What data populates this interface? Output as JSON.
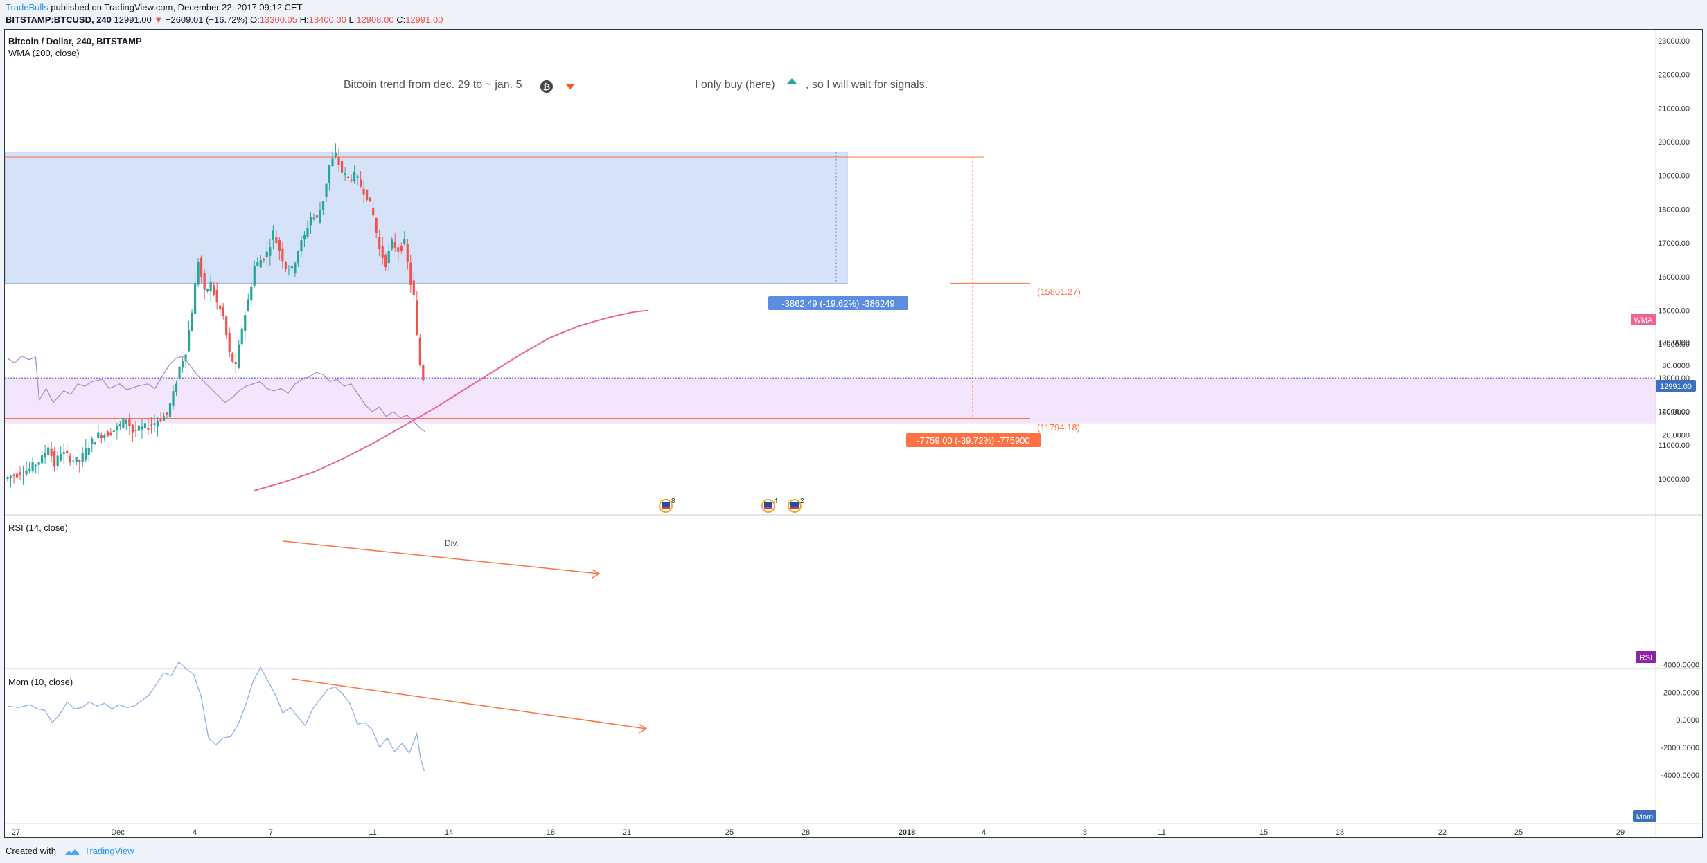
{
  "header": {
    "author": "TradeBulls",
    "published_text": "published on TradingView.com, December 22, 2017 09:12 CET",
    "symbol": "BITSTAMP:BTCUSD, 240",
    "last": "12991.00",
    "change": "−2609.01 (−16.72%)",
    "o_label": "O:",
    "o_value": "13300.05",
    "h_label": "H:",
    "h_value": "13400.00",
    "l_label": "L:",
    "l_value": "12908.00",
    "c_label": "C:",
    "c_value": "12991.00"
  },
  "legend": {
    "title": "Bitcoin / Dollar, 240, BITSTAMP",
    "wma": "WMA (200, close)",
    "rsi": "RSI (14, close)",
    "mom": "Mom (10, close)"
  },
  "annotations": {
    "trend_text": "Bitcoin trend from dec. 29 to ~ jan. 5",
    "buy_text_1": "I only buy (here)",
    "buy_text_2": ", so I will wait for signals.",
    "div_text": "Div.",
    "range_label_1": "-3862.49 (-19.62%) -386249",
    "range_label_2": "-7759.00 (-39.72%) -775900",
    "level_1": "(15801.27)",
    "level_2": "(11794.18)",
    "event_count_1": "8",
    "event_count_2": "4",
    "event_count_3": "2"
  },
  "badges": {
    "wma": "WMA",
    "price": "12991.00",
    "rsi": "RSI",
    "mom": "Mom"
  },
  "colors": {
    "up": "#26a69a",
    "down": "#ef5350",
    "wma": "#f06292",
    "rsi": "#b388d0",
    "mom": "#8fb0e6",
    "zone": "#c5d5f5",
    "rsi_band": "#f3e5fc",
    "drawing": "#ff7043",
    "price_line": "#3d6fc1"
  },
  "footer": {
    "created_with": "Created with",
    "brand": "TradingView"
  },
  "chart_data": {
    "type": "candlestick",
    "title": "Bitcoin / Dollar, 240, BITSTAMP",
    "timeframe": "240",
    "price_axis": {
      "ticks": [
        "23000.00",
        "22000.00",
        "21000.00",
        "20000.00",
        "19000.00",
        "18000.00",
        "17000.00",
        "16000.00",
        "15000.00",
        "14000.00",
        "13000.00",
        "12000.00",
        "11000.00",
        "10000.00"
      ],
      "range": [
        9500,
        23500
      ]
    },
    "rsi_axis": {
      "ticks": [
        "100.0000",
        "80.0000",
        "60.0000",
        "40.0000",
        "20.0000"
      ],
      "range": [
        20,
        100
      ],
      "band": [
        30,
        70
      ]
    },
    "mom_axis": {
      "ticks": [
        "4000.0000",
        "2000.0000",
        "0.0000",
        "-2000.0000",
        "-4000.0000"
      ],
      "range": [
        -4000,
        4000
      ]
    },
    "x_ticks": [
      "27",
      "Dec",
      "4",
      "7",
      "11",
      "14",
      "18",
      "21",
      "25",
      "28",
      "2018",
      "4",
      "8",
      "11",
      "15",
      "18",
      "22",
      "25",
      "29"
    ],
    "key_levels": {
      "zone_top": 19700,
      "zone_bottom": 15801.27,
      "level_1": 15801.27,
      "level_2": 11794.18,
      "last": 12991
    },
    "price_points": [
      [
        0,
        10000
      ],
      [
        4,
        10150
      ],
      [
        8,
        10300
      ],
      [
        12,
        10600
      ],
      [
        14,
        11000
      ],
      [
        16,
        10400
      ],
      [
        18,
        10800
      ],
      [
        21,
        10600
      ],
      [
        24,
        10500
      ],
      [
        27,
        11000
      ],
      [
        30,
        11300
      ],
      [
        33,
        11350
      ],
      [
        36,
        11500
      ],
      [
        39,
        11800
      ],
      [
        41,
        11400
      ],
      [
        44,
        11500
      ],
      [
        47,
        11600
      ],
      [
        50,
        11800
      ],
      [
        52,
        11900
      ],
      [
        54,
        12500
      ],
      [
        56,
        13300
      ],
      [
        58,
        13800
      ],
      [
        60,
        15000
      ],
      [
        62,
        16500
      ],
      [
        64,
        15500
      ],
      [
        66,
        15800
      ],
      [
        68,
        15200
      ],
      [
        70,
        14800
      ],
      [
        72,
        13700
      ],
      [
        74,
        13300
      ],
      [
        76,
        14500
      ],
      [
        78,
        15300
      ],
      [
        80,
        16300
      ],
      [
        82,
        16500
      ],
      [
        84,
        16700
      ],
      [
        86,
        17300
      ],
      [
        88,
        16800
      ],
      [
        90,
        16300
      ],
      [
        92,
        16200
      ],
      [
        94,
        16800
      ],
      [
        96,
        17200
      ],
      [
        98,
        17800
      ],
      [
        100,
        17700
      ],
      [
        102,
        18300
      ],
      [
        104,
        19300
      ],
      [
        106,
        19600
      ],
      [
        108,
        19100
      ],
      [
        110,
        18900
      ],
      [
        112,
        19000
      ],
      [
        114,
        18700
      ],
      [
        116,
        18400
      ],
      [
        118,
        17800
      ],
      [
        120,
        16800
      ],
      [
        122,
        16400
      ],
      [
        124,
        17000
      ],
      [
        126,
        16800
      ],
      [
        128,
        17000
      ],
      [
        130,
        15800
      ],
      [
        131,
        15400
      ],
      [
        132,
        14200
      ],
      [
        133,
        13400
      ],
      [
        134,
        12991
      ]
    ],
    "wma_points": [
      [
        0,
        9650
      ],
      [
        10,
        9900
      ],
      [
        20,
        10200
      ],
      [
        30,
        10600
      ],
      [
        40,
        11050
      ],
      [
        50,
        11550
      ],
      [
        60,
        12050
      ],
      [
        70,
        12600
      ],
      [
        80,
        13150
      ],
      [
        90,
        13700
      ],
      [
        100,
        14200
      ],
      [
        110,
        14550
      ],
      [
        120,
        14800
      ],
      [
        128,
        14950
      ],
      [
        133,
        15000
      ]
    ],
    "rsi_points": [
      [
        0,
        86
      ],
      [
        2,
        82
      ],
      [
        4,
        88
      ],
      [
        6,
        85
      ],
      [
        8,
        87
      ],
      [
        9,
        50
      ],
      [
        11,
        60
      ],
      [
        13,
        48
      ],
      [
        16,
        58
      ],
      [
        18,
        55
      ],
      [
        20,
        64
      ],
      [
        22,
        62
      ],
      [
        24,
        66
      ],
      [
        27,
        68
      ],
      [
        29,
        60
      ],
      [
        32,
        64
      ],
      [
        34,
        59
      ],
      [
        37,
        62
      ],
      [
        40,
        64
      ],
      [
        42,
        60
      ],
      [
        44,
        70
      ],
      [
        46,
        80
      ],
      [
        48,
        86
      ],
      [
        50,
        88
      ],
      [
        52,
        80
      ],
      [
        54,
        72
      ],
      [
        56,
        66
      ],
      [
        58,
        60
      ],
      [
        60,
        54
      ],
      [
        62,
        48
      ],
      [
        64,
        52
      ],
      [
        66,
        58
      ],
      [
        68,
        62
      ],
      [
        70,
        64
      ],
      [
        72,
        66
      ],
      [
        74,
        60
      ],
      [
        76,
        58
      ],
      [
        78,
        60
      ],
      [
        80,
        56
      ],
      [
        82,
        64
      ],
      [
        84,
        68
      ],
      [
        86,
        70
      ],
      [
        88,
        74
      ],
      [
        90,
        72
      ],
      [
        92,
        66
      ],
      [
        94,
        68
      ],
      [
        96,
        62
      ],
      [
        98,
        64
      ],
      [
        100,
        55
      ],
      [
        102,
        46
      ],
      [
        104,
        40
      ],
      [
        106,
        44
      ],
      [
        108,
        36
      ],
      [
        110,
        40
      ],
      [
        112,
        35
      ],
      [
        114,
        37
      ],
      [
        116,
        31
      ],
      [
        118,
        25
      ],
      [
        119,
        23
      ]
    ],
    "mom_points": [
      [
        0,
        1000
      ],
      [
        3,
        900
      ],
      [
        6,
        1100
      ],
      [
        8,
        800
      ],
      [
        10,
        700
      ],
      [
        12,
        -200
      ],
      [
        14,
        400
      ],
      [
        16,
        1300
      ],
      [
        18,
        800
      ],
      [
        20,
        900
      ],
      [
        22,
        1300
      ],
      [
        24,
        1000
      ],
      [
        26,
        1200
      ],
      [
        28,
        800
      ],
      [
        30,
        1100
      ],
      [
        32,
        900
      ],
      [
        34,
        1000
      ],
      [
        36,
        1400
      ],
      [
        38,
        1800
      ],
      [
        40,
        2600
      ],
      [
        42,
        3400
      ],
      [
        44,
        3200
      ],
      [
        46,
        4200
      ],
      [
        48,
        3700
      ],
      [
        50,
        3300
      ],
      [
        52,
        1700
      ],
      [
        54,
        -1300
      ],
      [
        56,
        -1800
      ],
      [
        58,
        -1300
      ],
      [
        60,
        -1200
      ],
      [
        62,
        -300
      ],
      [
        64,
        1100
      ],
      [
        66,
        2800
      ],
      [
        68,
        3800
      ],
      [
        70,
        2800
      ],
      [
        72,
        1800
      ],
      [
        74,
        500
      ],
      [
        76,
        900
      ],
      [
        78,
        200
      ],
      [
        80,
        -400
      ],
      [
        82,
        800
      ],
      [
        84,
        1500
      ],
      [
        86,
        2200
      ],
      [
        88,
        2400
      ],
      [
        90,
        1900
      ],
      [
        92,
        1200
      ],
      [
        94,
        -300
      ],
      [
        96,
        -200
      ],
      [
        98,
        -700
      ],
      [
        100,
        -2000
      ],
      [
        102,
        -1300
      ],
      [
        104,
        -2300
      ],
      [
        106,
        -1700
      ],
      [
        108,
        -2400
      ],
      [
        110,
        -1000
      ],
      [
        111,
        -2800
      ],
      [
        112,
        -3700
      ]
    ]
  }
}
